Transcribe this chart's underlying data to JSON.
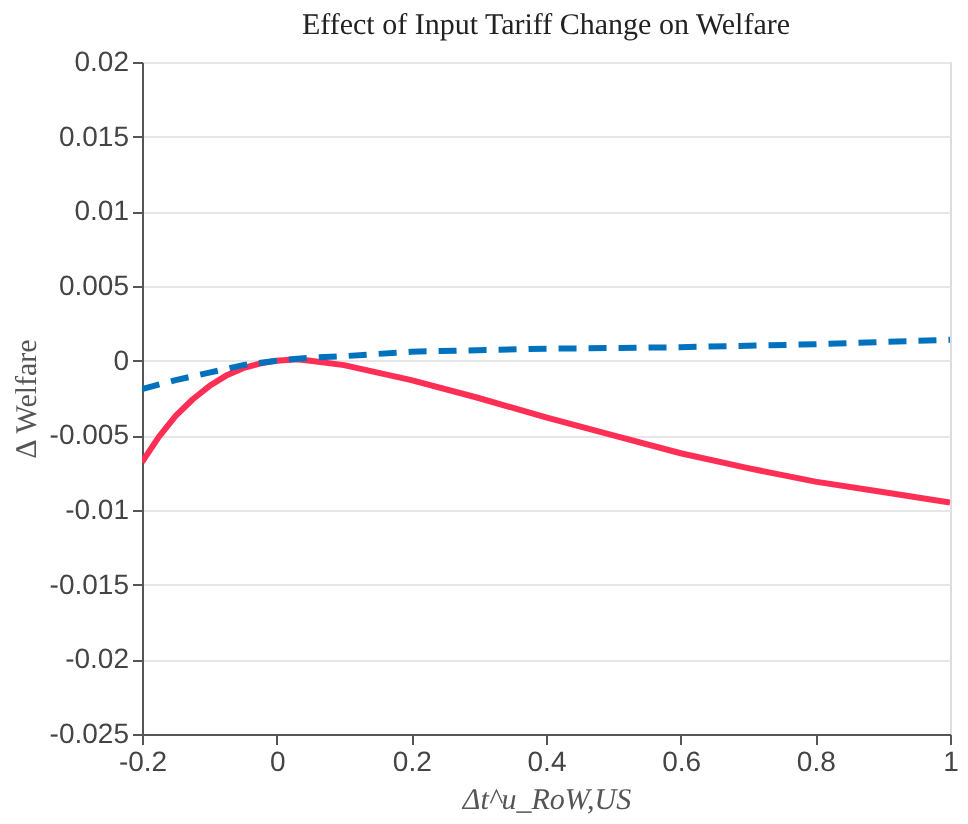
{
  "chart_data": {
    "type": "line",
    "title": "Effect of Input Tariff Change on Welfare",
    "xlabel": "Δt^u_RoW,US",
    "ylabel": "Δ Welfare",
    "xlim": [
      -0.2,
      1
    ],
    "xticks": [
      -0.2,
      0,
      0.2,
      0.4,
      0.6,
      0.8,
      1
    ],
    "ylim": [
      -0.025,
      0.02
    ],
    "yticks": [
      -0.025,
      -0.02,
      -0.015,
      -0.01,
      -0.005,
      0,
      0.005,
      0.01,
      0.015,
      0.02
    ],
    "grid": "y",
    "legend": false,
    "marker": "none",
    "series": [
      {
        "color": "#ff2e55",
        "line_style": "solid",
        "x": [
          -0.2,
          -0.175,
          -0.15,
          -0.125,
          -0.1,
          -0.075,
          -0.05,
          -0.025,
          0,
          0.03,
          0.05,
          0.1,
          0.2,
          0.3,
          0.4,
          0.5,
          0.6,
          0.7,
          0.8,
          0.9,
          1
        ],
        "values": [
          -0.0068,
          -0.0051,
          -0.0037,
          -0.0026,
          -0.0017,
          -0.001,
          -0.0005,
          -0.0002,
          0.0,
          0.0001,
          0.0,
          -0.0003,
          -0.0013,
          -0.0025,
          -0.0038,
          -0.005,
          -0.0062,
          -0.0072,
          -0.0081,
          -0.0088,
          -0.0095
        ]
      },
      {
        "color": "#0072bd",
        "line_style": "dashed",
        "x": [
          -0.2,
          -0.15,
          -0.1,
          -0.05,
          0,
          0.05,
          0.1,
          0.2,
          0.4,
          0.6,
          0.8,
          1
        ],
        "values": [
          -0.0019,
          -0.0013,
          -0.0008,
          -0.0003,
          0.0,
          0.0002,
          0.0003,
          0.0006,
          0.0008,
          0.0009,
          0.0011,
          0.0014
        ]
      }
    ]
  }
}
